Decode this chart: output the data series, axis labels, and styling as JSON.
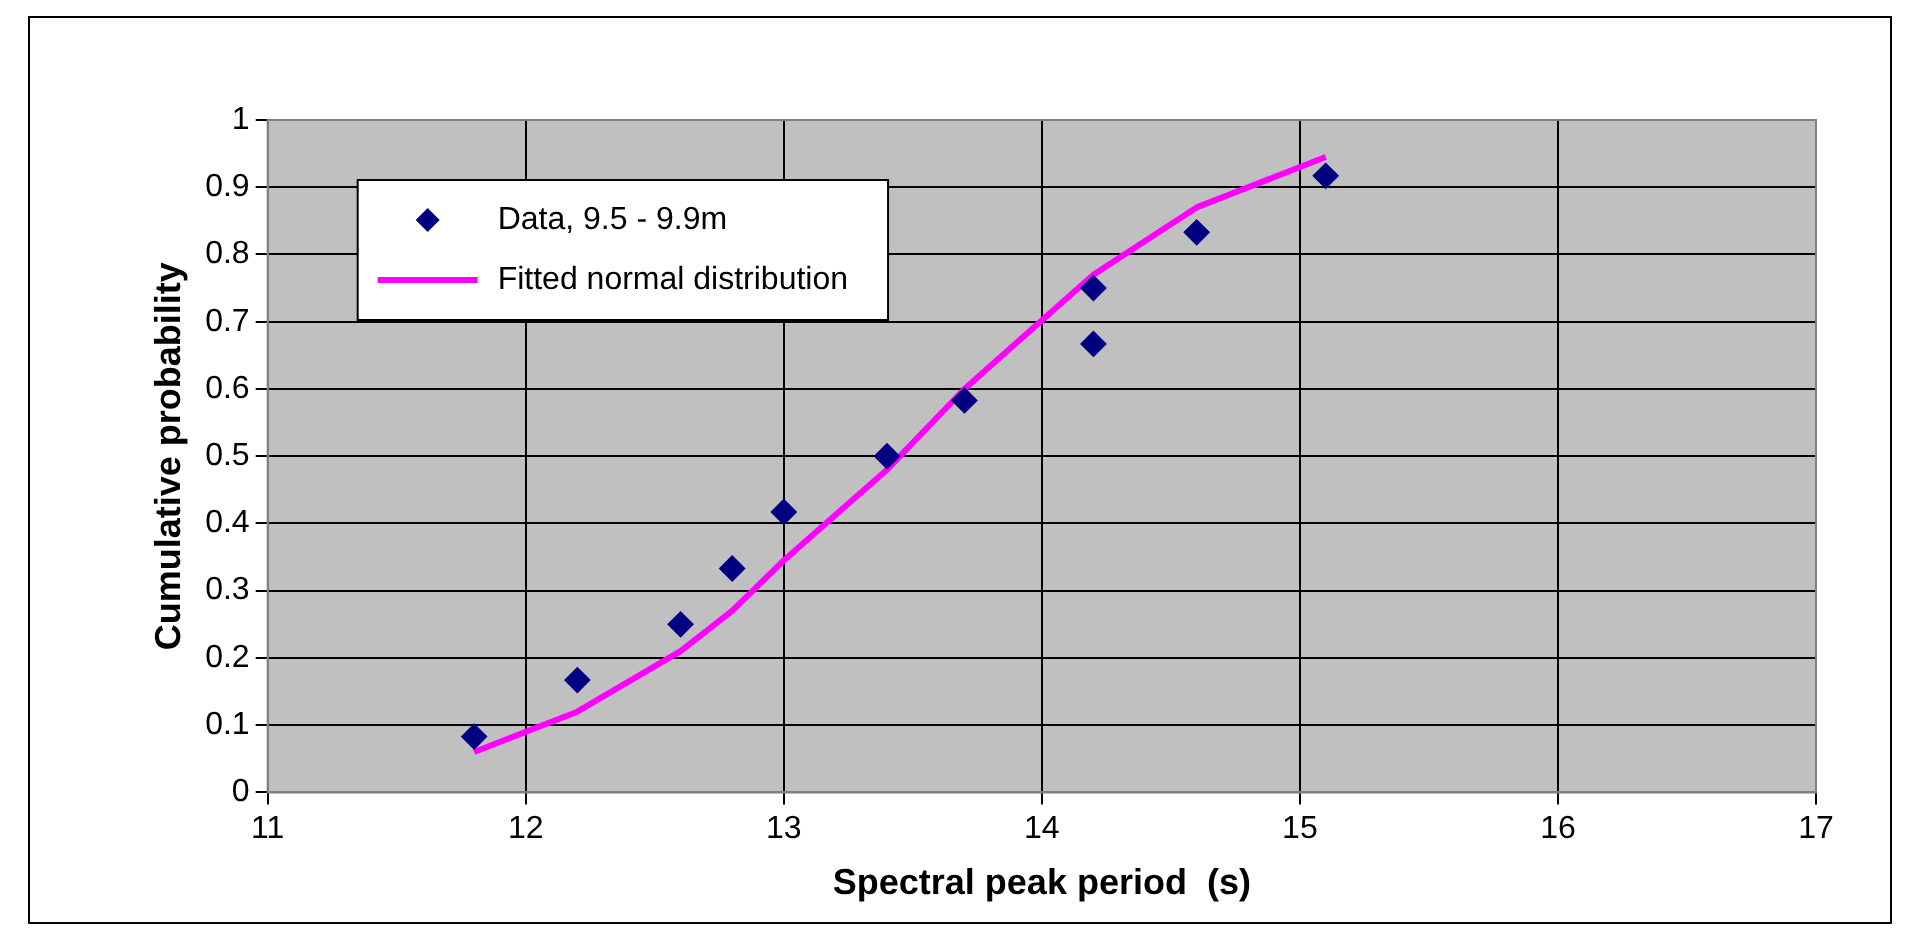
{
  "chart_data": {
    "type": "scatter",
    "xlabel": "Spectral peak period  (s)",
    "ylabel": "Cumulative probability",
    "xlim": [
      11,
      17
    ],
    "xticks": [
      11,
      12,
      13,
      14,
      15,
      16,
      17
    ],
    "ylim": [
      0,
      1
    ],
    "yticks": [
      0,
      0.1,
      0.2,
      0.3,
      0.4,
      0.5,
      0.6,
      0.7,
      0.8,
      0.9,
      1
    ],
    "grid": true,
    "legend": "top left",
    "series": [
      {
        "name": "Data, 9.5 - 9.9m",
        "marker": "diamond",
        "color": "#000080",
        "x": [
          11.8,
          12.2,
          12.6,
          12.8,
          13.0,
          13.4,
          13.7,
          14.2,
          14.2,
          14.6,
          15.1
        ],
        "values": [
          0.083,
          0.167,
          0.25,
          0.333,
          0.417,
          0.5,
          0.583,
          0.667,
          0.75,
          0.833,
          0.917
        ]
      },
      {
        "name": "Fitted normal distribution",
        "type": "line",
        "marker": "none",
        "line_style": "solid",
        "color": "#ff00ff",
        "x": [
          11.8,
          12.2,
          12.6,
          12.8,
          13.0,
          13.4,
          13.7,
          14.2,
          14.6,
          15.1
        ],
        "values": [
          0.06,
          0.12,
          0.21,
          0.27,
          0.345,
          0.48,
          0.6,
          0.77,
          0.87,
          0.945
        ]
      }
    ]
  }
}
